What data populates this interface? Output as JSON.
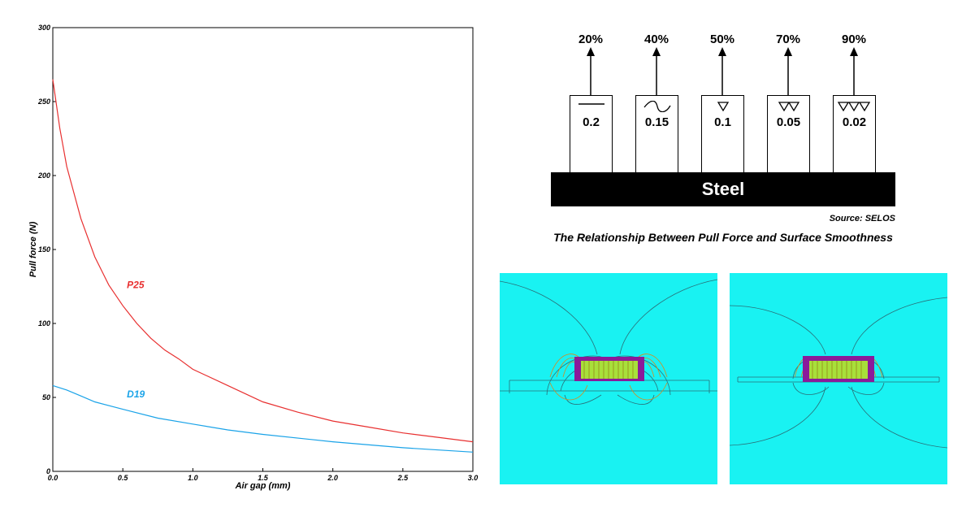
{
  "chart_data": {
    "type": "line",
    "xlabel": "Air gap (mm)",
    "ylabel": "Pull force (N)",
    "xlim": [
      0,
      3.0
    ],
    "ylim": [
      0,
      300
    ],
    "x_ticks": [
      "0.0",
      "0.5",
      "1.0",
      "1.5",
      "2.0",
      "2.5",
      "3.0"
    ],
    "y_ticks": [
      "0",
      "50",
      "100",
      "150",
      "200",
      "250",
      "300"
    ],
    "grid": false,
    "series": [
      {
        "name": "P25",
        "color": "#e83030",
        "x": [
          0,
          0.05,
          0.1,
          0.2,
          0.3,
          0.4,
          0.5,
          0.6,
          0.7,
          0.8,
          0.9,
          1.0,
          1.25,
          1.5,
          1.75,
          2.0,
          2.25,
          2.5,
          2.75,
          3.0
        ],
        "y": [
          265,
          232,
          206,
          171,
          145,
          126,
          112,
          100,
          90,
          82,
          76,
          69,
          58,
          47,
          40,
          34,
          30,
          26,
          23,
          20
        ]
      },
      {
        "name": "D19",
        "color": "#1aa3e8",
        "x": [
          0,
          0.1,
          0.2,
          0.3,
          0.5,
          0.75,
          1.0,
          1.25,
          1.5,
          2.0,
          2.5,
          3.0
        ],
        "y": [
          58,
          55,
          51,
          47,
          42,
          36,
          32,
          28,
          25,
          20,
          16,
          13
        ]
      }
    ]
  },
  "smoothness": {
    "items": [
      {
        "percent": "20%",
        "value": "0.2",
        "symbol": "line-icon"
      },
      {
        "percent": "40%",
        "value": "0.15",
        "symbol": "wave-icon"
      },
      {
        "percent": "50%",
        "value": "0.1",
        "symbol": "one-triangle-icon"
      },
      {
        "percent": "70%",
        "value": "0.05",
        "symbol": "two-triangles-icon"
      },
      {
        "percent": "90%",
        "value": "0.02",
        "symbol": "three-triangles-icon"
      }
    ],
    "steel_label": "Steel",
    "source": "Source: SELOS",
    "caption": "The Relationship Between Pull Force and Surface Smoothness"
  },
  "colors": {
    "field_background": "#19f2f2",
    "magnet_purple": "#8a1a9a",
    "core_green": "#a8e03a"
  }
}
